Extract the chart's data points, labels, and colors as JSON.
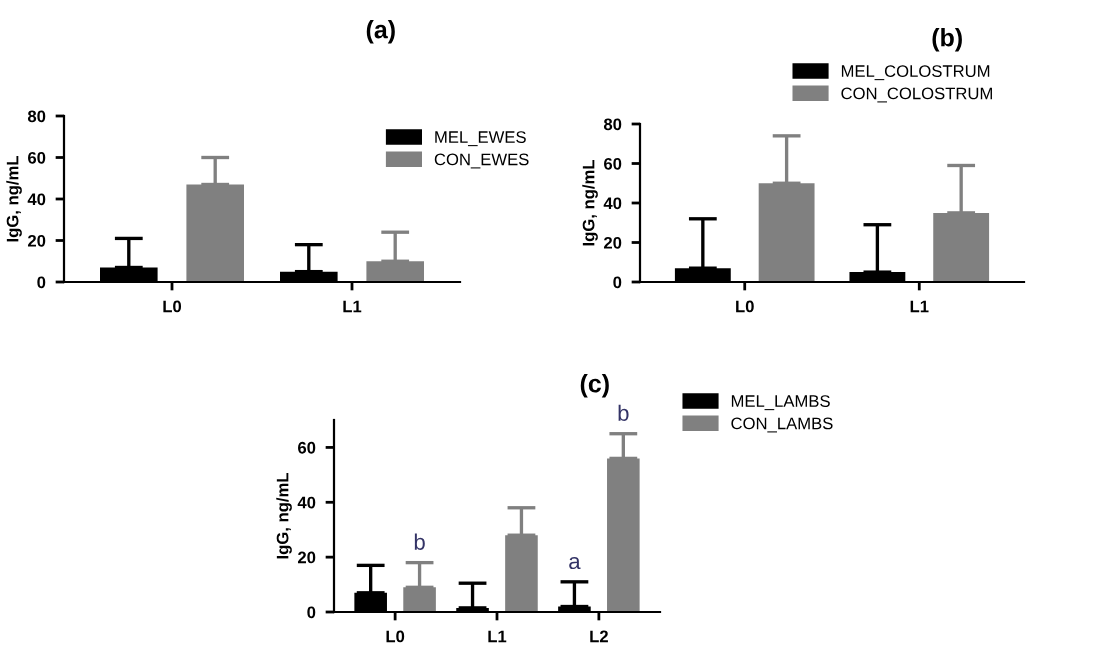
{
  "chart_data": [
    {
      "type": "bar",
      "title": "(a)",
      "ylabel": "IgG, ng/mL",
      "categories": [
        "L0",
        "L1"
      ],
      "ylim": [
        0,
        80
      ],
      "yticks": [
        0,
        20,
        40,
        60,
        80
      ],
      "grid": false,
      "legend": "top right",
      "series": [
        {
          "name": "MEL_EWES",
          "color": "#000000",
          "values": [
            7,
            5
          ],
          "errors": [
            [
              7,
              21
            ],
            [
              5,
              18
            ]
          ]
        },
        {
          "name": "CON_EWES",
          "color": "#808080",
          "values": [
            47,
            10
          ],
          "errors": [
            [
              47,
              60
            ],
            [
              10,
              24
            ]
          ]
        }
      ]
    },
    {
      "type": "bar",
      "title": "(b)",
      "ylabel": "IgG, ng/mL",
      "categories": [
        "L0",
        "L1"
      ],
      "ylim": [
        0,
        80
      ],
      "yticks": [
        0,
        20,
        40,
        60,
        80
      ],
      "grid": false,
      "legend": "top right",
      "series": [
        {
          "name": "MEL_COLOSTRUM",
          "color": "#000000",
          "values": [
            7,
            5
          ],
          "errors": [
            [
              7,
              32
            ],
            [
              5,
              29
            ]
          ]
        },
        {
          "name": "CON_COLOSTRUM",
          "color": "#808080",
          "values": [
            50,
            35
          ],
          "errors": [
            [
              50,
              74
            ],
            [
              35,
              59
            ]
          ]
        }
      ]
    },
    {
      "type": "bar",
      "title": "(c)",
      "ylabel": "IgG, ng/mL",
      "categories": [
        "L0",
        "L1",
        "L2"
      ],
      "ylim": [
        0,
        70
      ],
      "yticks": [
        0,
        20,
        40,
        60
      ],
      "grid": false,
      "legend": "top right",
      "annotations": [
        {
          "text": "b",
          "x": "L0",
          "y": 9
        },
        {
          "text": "a",
          "x": "L2",
          "y": 2
        },
        {
          "text": "b",
          "x": "L2",
          "y": 56
        }
      ],
      "series": [
        {
          "name": "MEL_LAMBS",
          "color": "#000000",
          "values": [
            7,
            1.5,
            2
          ],
          "errors": [
            [
              7,
              17
            ],
            [
              1.5,
              10.5
            ],
            [
              2,
              11
            ]
          ]
        },
        {
          "name": "CON_LAMBS",
          "color": "#808080",
          "values": [
            9,
            28,
            56
          ],
          "errors": [
            [
              9,
              18
            ],
            [
              28,
              38
            ],
            [
              56,
              65
            ]
          ]
        }
      ]
    }
  ]
}
